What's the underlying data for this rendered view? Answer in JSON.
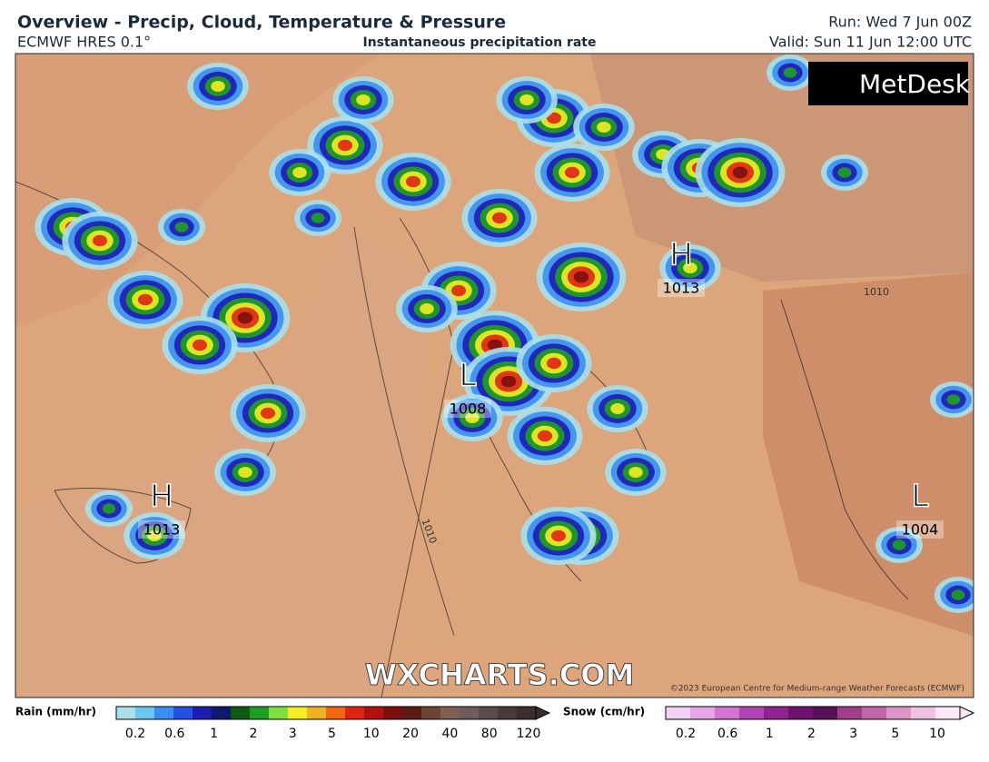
{
  "header": {
    "title": "Overview - Precip, Cloud, Temperature & Pressure",
    "model": "ECMWF HRES 0.1°",
    "subtitle": "Instantaneous precipitation rate",
    "run": "Run: Wed 7 Jun 00Z",
    "valid": "Valid: Sun 11 Jun 12:00 UTC"
  },
  "logo": "MetDesk",
  "pressure_systems": [
    {
      "letter": "H",
      "value": "1013"
    },
    {
      "letter": "L",
      "value": "1008"
    },
    {
      "letter": "H",
      "value": "1013"
    },
    {
      "letter": "L",
      "value": "1004"
    }
  ],
  "isobar_labels": [
    "1010",
    "1010"
  ],
  "watermark": "WXCHARTS.COM",
  "copyright": "©2023 European Centre for Medium-range Weather Forecasts (ECMWF)",
  "rain_legend": {
    "title": "Rain (mm/hr)",
    "labels": [
      "0.2",
      "0.6",
      "1",
      "2",
      "3",
      "5",
      "10",
      "20",
      "40",
      "80",
      "120"
    ],
    "colors": [
      "#a8e0ea",
      "#6cc6f2",
      "#3a8ef2",
      "#2450e6",
      "#1c1cb0",
      "#101870",
      "#0e5c14",
      "#20a020",
      "#7ee040",
      "#f2ee22",
      "#f2b022",
      "#f26612",
      "#e02414",
      "#b41010",
      "#7e0e0e",
      "#5e1a14",
      "#6e4434",
      "#806052",
      "#6e5c5c",
      "#5a4c4c",
      "#483a3a",
      "#3a2e2e"
    ]
  },
  "snow_legend": {
    "title": "Snow (cm/hr)",
    "labels": [
      "0.2",
      "0.6",
      "1",
      "2",
      "3",
      "5",
      "10"
    ],
    "colors": [
      "#f2d2f2",
      "#e4a6e4",
      "#d274d2",
      "#b444b4",
      "#922292",
      "#701070",
      "#581058",
      "#a03e8a",
      "#c266a8",
      "#de94c6",
      "#f0c2e2",
      "#fbe8f6"
    ]
  }
}
